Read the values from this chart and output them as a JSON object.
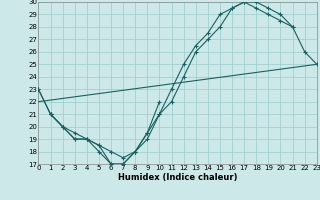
{
  "xlabel": "Humidex (Indice chaleur)",
  "bg_color": "#cce8e8",
  "grid_color": "#99cccc",
  "line_color": "#1a6060",
  "ylim": [
    17,
    30
  ],
  "xlim": [
    0,
    23
  ],
  "yticks": [
    17,
    18,
    19,
    20,
    21,
    22,
    23,
    24,
    25,
    26,
    27,
    28,
    29,
    30
  ],
  "xticks": [
    0,
    1,
    2,
    3,
    4,
    5,
    6,
    7,
    8,
    9,
    10,
    11,
    12,
    13,
    14,
    15,
    16,
    17,
    18,
    19,
    20,
    21,
    22,
    23
  ],
  "curve_top": {
    "x": [
      0,
      1,
      2,
      3,
      4,
      5,
      6,
      7,
      8,
      9,
      10,
      11,
      12,
      13,
      14,
      15,
      16,
      17,
      18,
      19,
      20,
      21,
      22,
      23
    ],
    "y": [
      23,
      21,
      20,
      19,
      19,
      18,
      17,
      17,
      18,
      19.5,
      21,
      22,
      24,
      26,
      27,
      28,
      29.5,
      30,
      30,
      29.5,
      29,
      28,
      26,
      25
    ]
  },
  "curve_mid": {
    "x": [
      0,
      1,
      2,
      3,
      4,
      5,
      6,
      7,
      8,
      9,
      10,
      11,
      12,
      13,
      14,
      15,
      16,
      17,
      18,
      19,
      20,
      21
    ],
    "y": [
      23,
      21,
      20,
      19.5,
      19,
      18.5,
      18,
      17.5,
      18,
      19,
      21,
      23,
      25,
      26.5,
      27.5,
      29,
      29.5,
      30,
      29.5,
      29,
      28.5,
      28
    ]
  },
  "curve_diag": {
    "x": [
      0,
      23
    ],
    "y": [
      22,
      25
    ]
  },
  "curve_low": {
    "x": [
      1,
      2,
      3,
      4,
      5,
      6,
      7,
      8,
      9,
      10
    ],
    "y": [
      21,
      20,
      19,
      19,
      18.5,
      17,
      17,
      18,
      19.5,
      22
    ]
  }
}
